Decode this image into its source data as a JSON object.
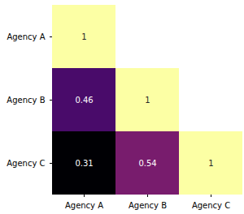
{
  "chart_data": {
    "type": "heatmap",
    "categories": [
      "Agency A",
      "Agency B",
      "Agency C"
    ],
    "cells": [
      [
        1,
        null,
        null
      ],
      [
        0.46,
        1,
        null
      ],
      [
        0.31,
        0.54,
        1
      ]
    ],
    "color": "inferno",
    "zlim": [
      0.31,
      1
    ],
    "data_labels": true
  }
}
